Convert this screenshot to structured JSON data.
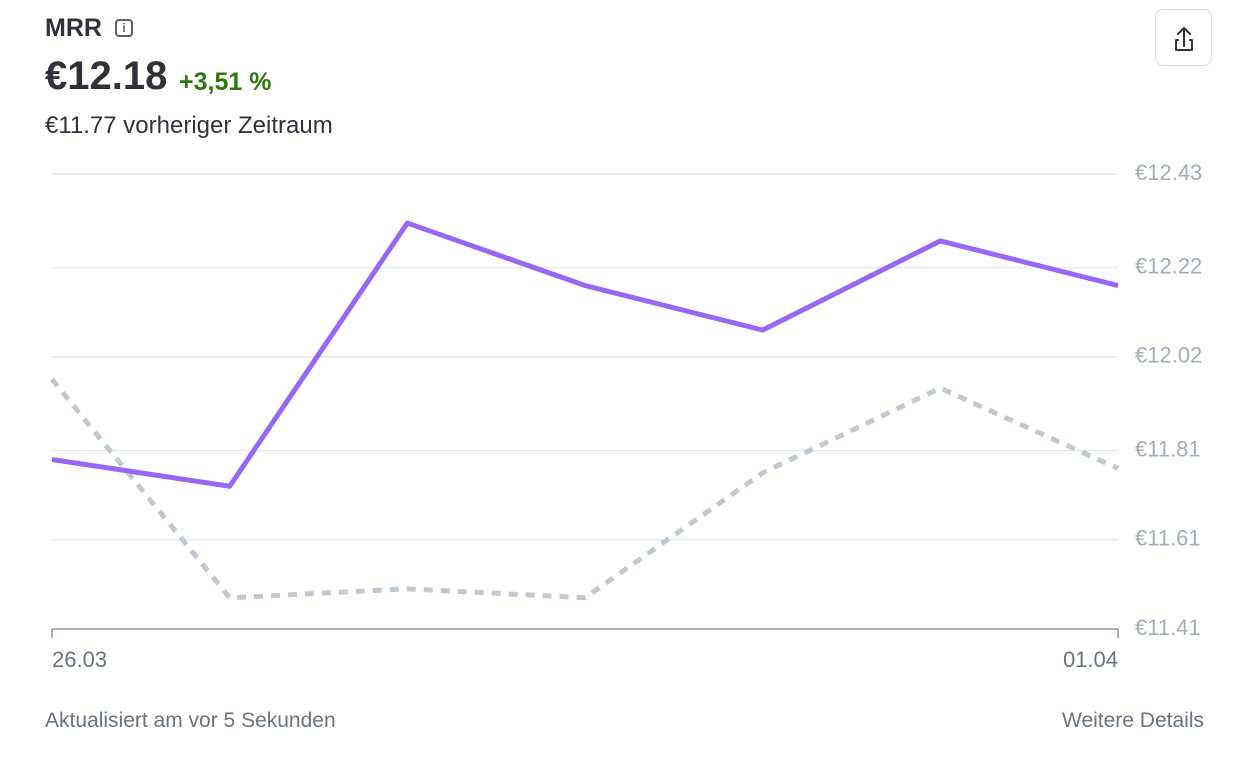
{
  "header": {
    "title": "MRR",
    "value": "€12.18",
    "change": "+3,51 %",
    "previous": "€11.77 vorheriger Zeitraum"
  },
  "chart_data": {
    "type": "line",
    "categories": [
      "26.03",
      null,
      null,
      null,
      null,
      null,
      "01.04"
    ],
    "series": [
      {
        "color": "#9966f5",
        "dashed": false,
        "values": [
          11.79,
          11.73,
          12.32,
          12.18,
          12.08,
          12.28,
          12.18
        ]
      },
      {
        "color": "#c0c8d2",
        "dashed": true,
        "values": [
          11.97,
          11.48,
          11.5,
          11.48,
          11.76,
          11.95,
          11.77
        ]
      }
    ],
    "ylim": [
      11.41,
      12.43
    ],
    "yticks": [
      {
        "value": 11.41,
        "label": "€11.41"
      },
      {
        "value": 11.61,
        "label": "€11.61"
      },
      {
        "value": 11.81,
        "label": "€11.81"
      },
      {
        "value": 12.02,
        "label": "€12.02"
      },
      {
        "value": 12.22,
        "label": "€12.22"
      },
      {
        "value": 12.43,
        "label": "€12.43"
      }
    ],
    "grid": true
  },
  "footer": {
    "updated": "Aktualisiert am vor 5 Sekunden",
    "details": "Weitere Details"
  }
}
